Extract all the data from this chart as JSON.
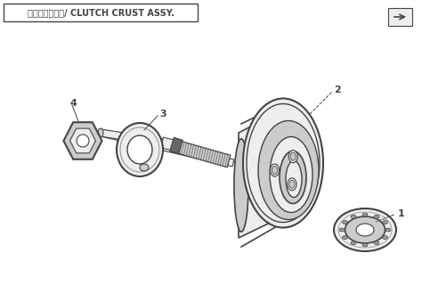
{
  "title": "离合器外坡组合/ CLUTCH CRUST ASSY.",
  "background_color": "#ffffff",
  "dark_gray": "#444444",
  "mid_gray": "#999999",
  "light_gray": "#cccccc",
  "very_light_gray": "#eeeeee",
  "spline_dark": "#666666",
  "title_font_size": 7,
  "label_font_size": 8,
  "figsize": [
    4.74,
    3.3
  ],
  "dpi": 100
}
